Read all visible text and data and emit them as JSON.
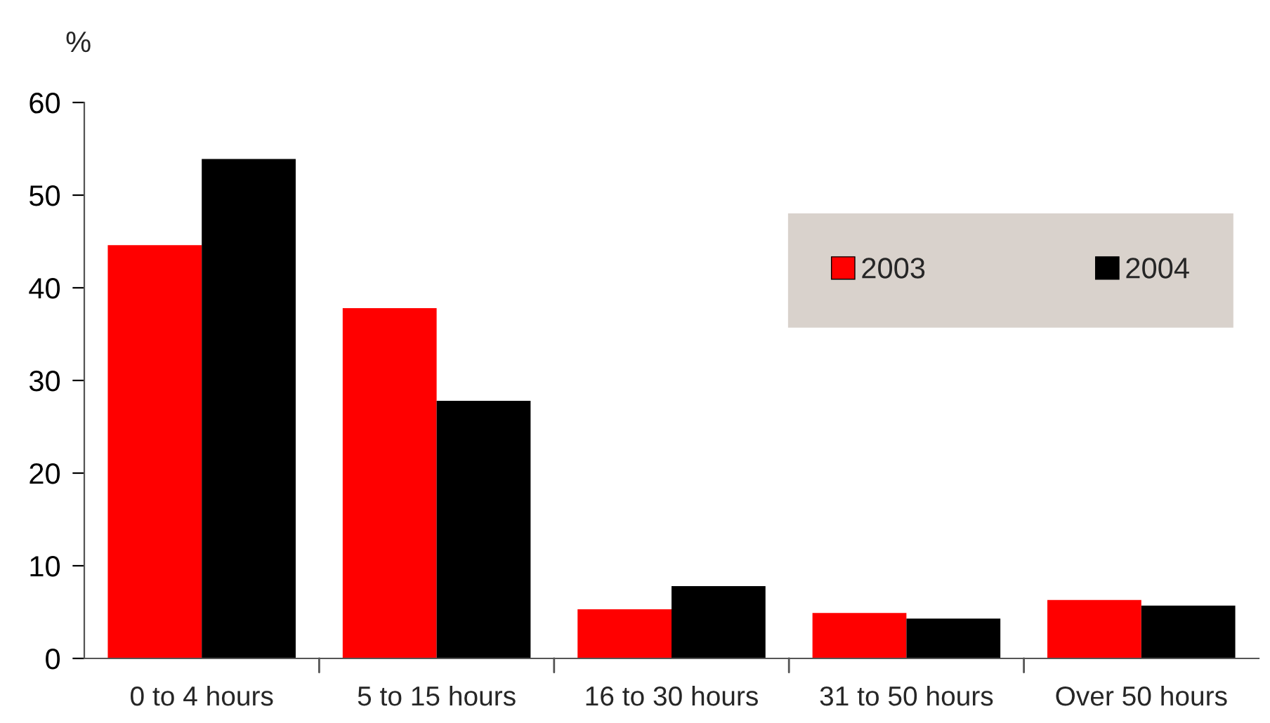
{
  "chart_data": {
    "type": "bar",
    "ylabel": "%",
    "categories": [
      "0 to 4 hours",
      "5 to 15 hours",
      "16 to 30 hours",
      "31 to 50 hours",
      "Over 50 hours"
    ],
    "series": [
      {
        "name": "2003",
        "color": "#ff0000",
        "values": [
          44.6,
          37.8,
          5.3,
          4.9,
          6.3
        ]
      },
      {
        "name": "2004",
        "color": "#000000",
        "values": [
          53.9,
          27.8,
          7.8,
          4.3,
          5.7
        ]
      }
    ],
    "ylim": [
      0,
      60
    ],
    "yticks": [
      0,
      10,
      20,
      30,
      40,
      50,
      60
    ],
    "grid": false,
    "legend": "top right"
  }
}
